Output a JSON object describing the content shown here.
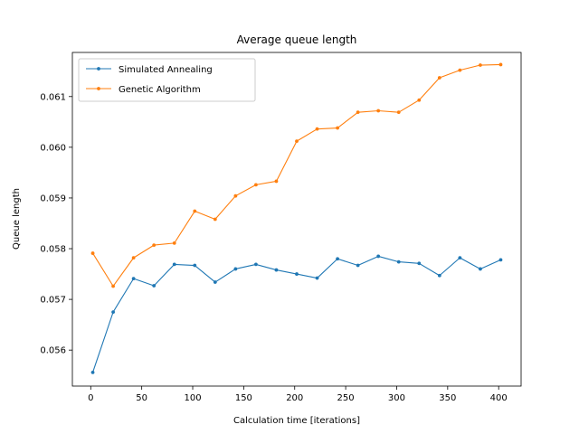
{
  "chart_data": {
    "type": "line",
    "title": "Average queue length",
    "xlabel": "Calculation time [iterations]",
    "ylabel": "Queue length",
    "xlim": [
      -18,
      422
    ],
    "ylim": [
      0.05529,
      0.06187
    ],
    "xticks": [
      0,
      50,
      100,
      150,
      200,
      250,
      300,
      350,
      400
    ],
    "yticks": [
      0.056,
      0.057,
      0.058,
      0.059,
      0.06,
      0.061
    ],
    "ytick_labels": [
      "0.056",
      "0.057",
      "0.058",
      "0.059",
      "0.060",
      "0.061"
    ],
    "grid": false,
    "legend_position": "upper-left",
    "x": [
      2,
      22,
      42,
      62,
      82,
      102,
      122,
      142,
      162,
      182,
      202,
      222,
      242,
      262,
      282,
      302,
      322,
      342,
      362,
      382,
      402
    ],
    "series": [
      {
        "name": "Simulated Annealing",
        "color": "#1f77b4",
        "values": [
          0.05556,
          0.05675,
          0.05741,
          0.05727,
          0.05769,
          0.05767,
          0.05734,
          0.0576,
          0.05769,
          0.05758,
          0.0575,
          0.05742,
          0.0578,
          0.05767,
          0.05785,
          0.05774,
          0.05771,
          0.05747,
          0.05782,
          0.0576,
          0.05778
        ]
      },
      {
        "name": "Genetic Algorithm",
        "color": "#ff7f0e",
        "values": [
          0.05791,
          0.05726,
          0.05782,
          0.05807,
          0.05811,
          0.05874,
          0.05858,
          0.05904,
          0.05926,
          0.05933,
          0.06012,
          0.06036,
          0.06038,
          0.06069,
          0.06072,
          0.06069,
          0.06093,
          0.06137,
          0.06152,
          0.06162,
          0.06163
        ]
      }
    ]
  }
}
